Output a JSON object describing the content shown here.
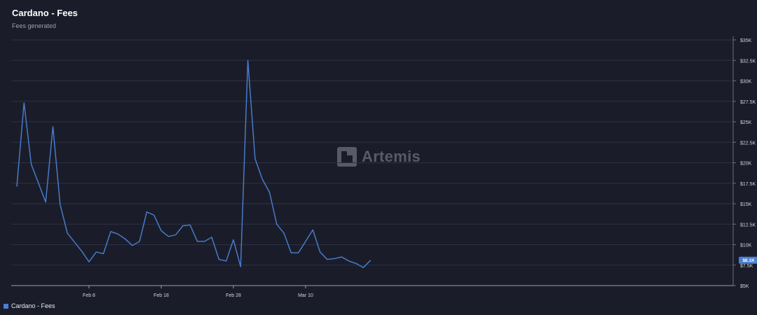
{
  "header": {
    "title": "Cardano - Fees",
    "subtitle": "Fees generated"
  },
  "watermark": {
    "text": "Artemis",
    "icon": "artemis-logo-icon"
  },
  "legend": {
    "label": "Cardano - Fees"
  },
  "colors": {
    "background": "#1a1d29",
    "series": "#4a7fd4",
    "grid": "#2d3142",
    "axis_text": "#d0d2da"
  },
  "chart_data": {
    "type": "line",
    "title": "Cardano - Fees",
    "subtitle": "Fees generated",
    "x_tick_labels": [
      "Feb 8",
      "Feb 18",
      "Feb 28",
      "Mar 10"
    ],
    "x_tick_days": [
      9,
      19,
      29,
      39
    ],
    "y_tick_labels": [
      "$5K",
      "$7.5K",
      "$10K",
      "$12.5K",
      "$15K",
      "$17.5K",
      "$20K",
      "$22.5K",
      "$25K",
      "$27.5K",
      "$30K",
      "$32.5K",
      "$35K"
    ],
    "ylim": [
      5000,
      35000
    ],
    "grid": "horizontal",
    "last_value_label": "$8.1K",
    "series": [
      {
        "name": "Cardano - Fees",
        "dates": [
          "Jan 29",
          "Jan 30",
          "Jan 31",
          "Feb 1",
          "Feb 2",
          "Feb 3",
          "Feb 4",
          "Feb 5",
          "Feb 6",
          "Feb 7",
          "Feb 8",
          "Feb 9",
          "Feb 10",
          "Feb 11",
          "Feb 12",
          "Feb 13",
          "Feb 14",
          "Feb 15",
          "Feb 16",
          "Feb 17",
          "Feb 18",
          "Feb 19",
          "Feb 20",
          "Feb 21",
          "Feb 22",
          "Feb 23",
          "Feb 24",
          "Feb 25",
          "Feb 26",
          "Feb 27",
          "Feb 28",
          "Mar 1",
          "Mar 2",
          "Mar 3",
          "Mar 4",
          "Mar 5",
          "Mar 6",
          "Mar 7",
          "Mar 8",
          "Mar 9",
          "Mar 10",
          "Mar 11",
          "Mar 12",
          "Mar 13",
          "Mar 14",
          "Mar 15",
          "Mar 16",
          "Mar 17",
          "Mar 18",
          "Mar 19"
        ],
        "values": [
          17100,
          27300,
          19800,
          17500,
          15200,
          24400,
          14900,
          11400,
          10300,
          9200,
          7900,
          9100,
          8900,
          11600,
          11300,
          10700,
          9900,
          10400,
          14000,
          13600,
          11700,
          11000,
          11200,
          12300,
          12400,
          10400,
          10400,
          10900,
          8200,
          8000,
          10600,
          7300,
          32500,
          20500,
          18000,
          16400,
          12500,
          11400,
          9000,
          9000,
          10400,
          11800,
          9100,
          8200,
          8300,
          8500,
          8000,
          7700,
          7200,
          8100
        ]
      }
    ]
  }
}
